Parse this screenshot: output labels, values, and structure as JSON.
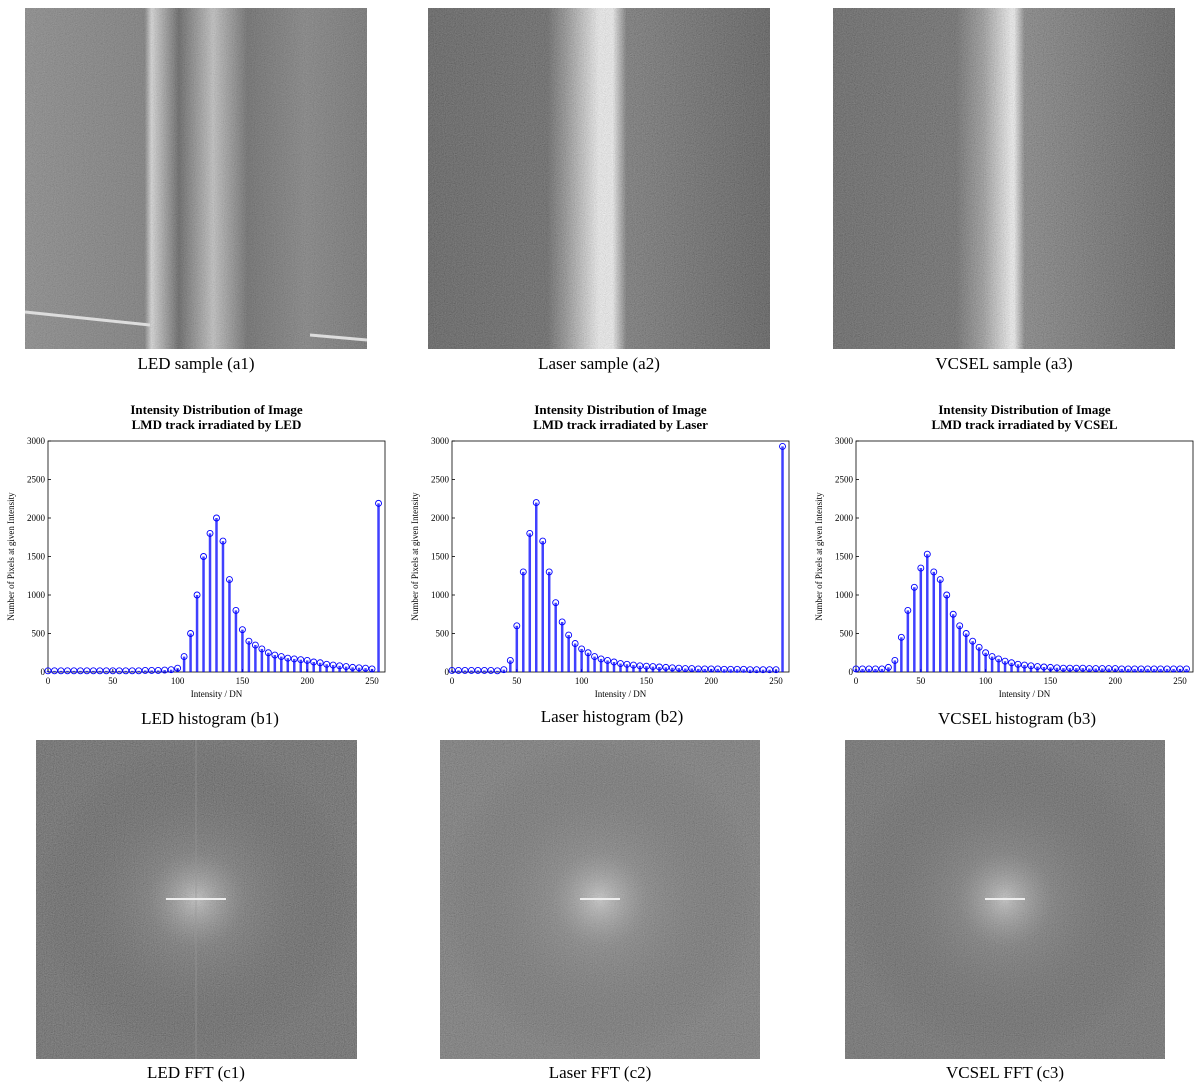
{
  "captions": {
    "a1": "LED sample (a1)",
    "a2": "Laser sample (a2)",
    "a3": "VCSEL sample (a3)",
    "b1": "LED histogram (b1)",
    "b2": "Laser histogram (b2)",
    "b3": "VCSEL histogram (b3)",
    "c1": "LED FFT (c1)",
    "c2": "Laser FFT (c2)",
    "c3": "VCSEL FFT (c3)"
  },
  "chart_data": [
    {
      "type": "stem",
      "title": "Intensity Distribution of Image",
      "subtitle": "LMD track irradiated by LED",
      "x_label": "Intensity / DN",
      "y_label": "Number of Pixels at given Intensity",
      "color": "#0000ff",
      "x": [
        0,
        5,
        10,
        15,
        20,
        25,
        30,
        35,
        40,
        45,
        50,
        55,
        60,
        65,
        70,
        75,
        80,
        85,
        90,
        95,
        100,
        105,
        110,
        115,
        120,
        125,
        130,
        135,
        140,
        145,
        150,
        155,
        160,
        165,
        170,
        175,
        180,
        185,
        190,
        195,
        200,
        205,
        210,
        215,
        220,
        225,
        230,
        235,
        240,
        245,
        250,
        255
      ],
      "values": [
        15,
        15,
        15,
        15,
        15,
        15,
        15,
        15,
        15,
        15,
        15,
        15,
        15,
        15,
        15,
        20,
        20,
        20,
        25,
        30,
        50,
        200,
        500,
        1000,
        1500,
        1800,
        2000,
        1700,
        1200,
        800,
        550,
        400,
        350,
        300,
        250,
        220,
        200,
        180,
        170,
        160,
        150,
        130,
        120,
        100,
        90,
        80,
        70,
        60,
        55,
        50,
        40,
        2190
      ],
      "xlim": [
        0,
        260
      ],
      "xticks": [
        0,
        50,
        100,
        150,
        200,
        250
      ],
      "ylim": [
        0,
        3000
      ],
      "yticks": [
        0,
        500,
        1000,
        1500,
        2000,
        2500,
        3000
      ]
    },
    {
      "type": "stem",
      "title": "Intensity Distribution of Image",
      "subtitle": "LMD track irradiated by Laser",
      "x_label": "Intensity / DN",
      "y_label": "Number of Pixels at given Intensity",
      "color": "#0000ff",
      "x": [
        0,
        5,
        10,
        15,
        20,
        25,
        30,
        35,
        40,
        45,
        50,
        55,
        60,
        65,
        70,
        75,
        80,
        85,
        90,
        95,
        100,
        105,
        110,
        115,
        120,
        125,
        130,
        135,
        140,
        145,
        150,
        155,
        160,
        165,
        170,
        175,
        180,
        185,
        190,
        195,
        200,
        205,
        210,
        215,
        220,
        225,
        230,
        235,
        240,
        245,
        250,
        255
      ],
      "values": [
        20,
        20,
        20,
        20,
        20,
        20,
        20,
        15,
        30,
        150,
        600,
        1300,
        1800,
        2200,
        1700,
        1300,
        900,
        650,
        480,
        370,
        300,
        250,
        200,
        170,
        150,
        130,
        110,
        100,
        90,
        80,
        75,
        70,
        65,
        60,
        55,
        50,
        45,
        45,
        40,
        40,
        40,
        40,
        35,
        35,
        35,
        35,
        30,
        30,
        30,
        30,
        30,
        2930
      ],
      "xlim": [
        0,
        260
      ],
      "xticks": [
        0,
        50,
        100,
        150,
        200,
        250
      ],
      "ylim": [
        0,
        3000
      ],
      "yticks": [
        0,
        500,
        1000,
        1500,
        2000,
        2500,
        3000
      ]
    },
    {
      "type": "stem",
      "title": "Intensity Distribution of Image",
      "subtitle": "LMD track irradiated by VCSEL",
      "x_label": "Intensity / DN",
      "y_label": "Number of Pixels at given Intensity",
      "color": "#0000ff",
      "x": [
        0,
        5,
        10,
        15,
        20,
        25,
        30,
        35,
        40,
        45,
        50,
        55,
        60,
        65,
        70,
        75,
        80,
        85,
        90,
        95,
        100,
        105,
        110,
        115,
        120,
        125,
        130,
        135,
        140,
        145,
        150,
        155,
        160,
        165,
        170,
        175,
        180,
        185,
        190,
        195,
        200,
        205,
        210,
        215,
        220,
        225,
        230,
        235,
        240,
        245,
        250,
        255
      ],
      "values": [
        40,
        40,
        40,
        40,
        40,
        60,
        150,
        450,
        800,
        1100,
        1350,
        1530,
        1300,
        1200,
        1000,
        750,
        600,
        500,
        400,
        320,
        250,
        200,
        170,
        140,
        120,
        100,
        90,
        80,
        70,
        65,
        60,
        55,
        50,
        50,
        50,
        50,
        45,
        45,
        45,
        45,
        45,
        40,
        40,
        40,
        40,
        40,
        40,
        40,
        40,
        40,
        40,
        40
      ],
      "xlim": [
        0,
        260
      ],
      "xticks": [
        0,
        50,
        100,
        150,
        200,
        250
      ],
      "ylim": [
        0,
        3000
      ],
      "yticks": [
        0,
        500,
        1000,
        1500,
        2000,
        2500,
        3000
      ]
    }
  ]
}
